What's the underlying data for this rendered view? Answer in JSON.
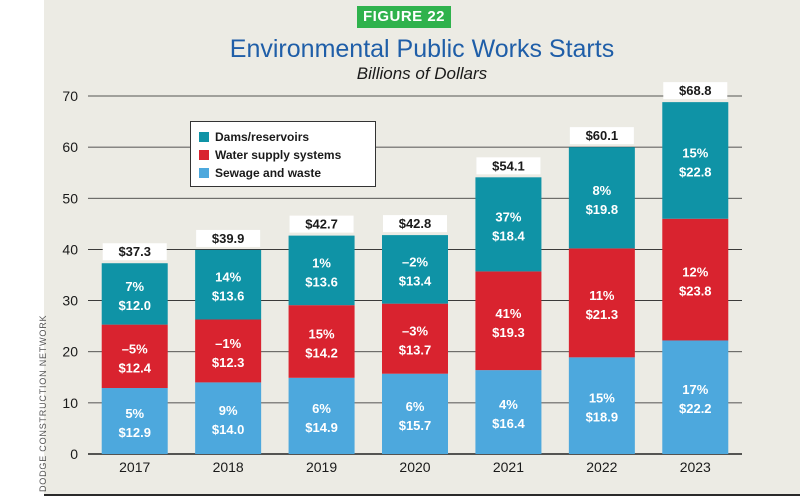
{
  "header": {
    "badge": "FIGURE 22",
    "title": "Environmental Public Works Starts",
    "subtitle": "Billions of Dollars"
  },
  "side_credit": "DODGE CONSTRUCTION NETWORK",
  "colors": {
    "sewage": "#4da8dd",
    "water": "#d9232f",
    "dams": "#0f93a6",
    "badge": "#2fb24c",
    "title": "#1f5ea8"
  },
  "chart_data": {
    "type": "bar",
    "stacked": true,
    "categories": [
      "2017",
      "2018",
      "2019",
      "2020",
      "2021",
      "2022",
      "2023"
    ],
    "series": [
      {
        "name": "Sewage and waste",
        "color": "#4da8dd",
        "values": [
          12.9,
          14.0,
          14.9,
          15.7,
          16.4,
          18.9,
          22.2
        ],
        "labels": [
          "$12.9",
          "$14.0",
          "$14.9",
          "$15.7",
          "$16.4",
          "$18.9",
          "$22.2"
        ],
        "pct": [
          "5%",
          "9%",
          "6%",
          "6%",
          "4%",
          "15%",
          "17%"
        ]
      },
      {
        "name": "Water supply systems",
        "color": "#d9232f",
        "values": [
          12.4,
          12.3,
          14.2,
          13.7,
          19.3,
          21.3,
          23.8
        ],
        "labels": [
          "$12.4",
          "$12.3",
          "$14.2",
          "$13.7",
          "$19.3",
          "$21.3",
          "$23.8"
        ],
        "pct": [
          "–5%",
          "–1%",
          "15%",
          "–3%",
          "41%",
          "11%",
          "12%"
        ]
      },
      {
        "name": "Dams/reservoirs",
        "color": "#0f93a6",
        "values": [
          12.0,
          13.6,
          13.6,
          13.4,
          18.4,
          19.8,
          22.8
        ],
        "labels": [
          "$12.0",
          "$13.6",
          "$13.6",
          "$13.4",
          "$18.4",
          "$19.8",
          "$22.8"
        ],
        "pct": [
          "7%",
          "14%",
          "1%",
          "–2%",
          "37%",
          "8%",
          "15%"
        ]
      }
    ],
    "totals": [
      "$37.3",
      "$39.9",
      "$42.7",
      "$42.8",
      "$54.1",
      "$60.1",
      "$68.8"
    ],
    "total_values": [
      37.3,
      39.9,
      42.7,
      42.8,
      54.1,
      60.1,
      68.8
    ],
    "y_ticks": [
      0,
      10,
      20,
      30,
      40,
      50,
      60,
      70
    ],
    "ylim": [
      0,
      70
    ],
    "grid": true,
    "legend_position": "top-left",
    "legend_order": [
      "Dams/reservoirs",
      "Water supply systems",
      "Sewage and waste"
    ]
  }
}
